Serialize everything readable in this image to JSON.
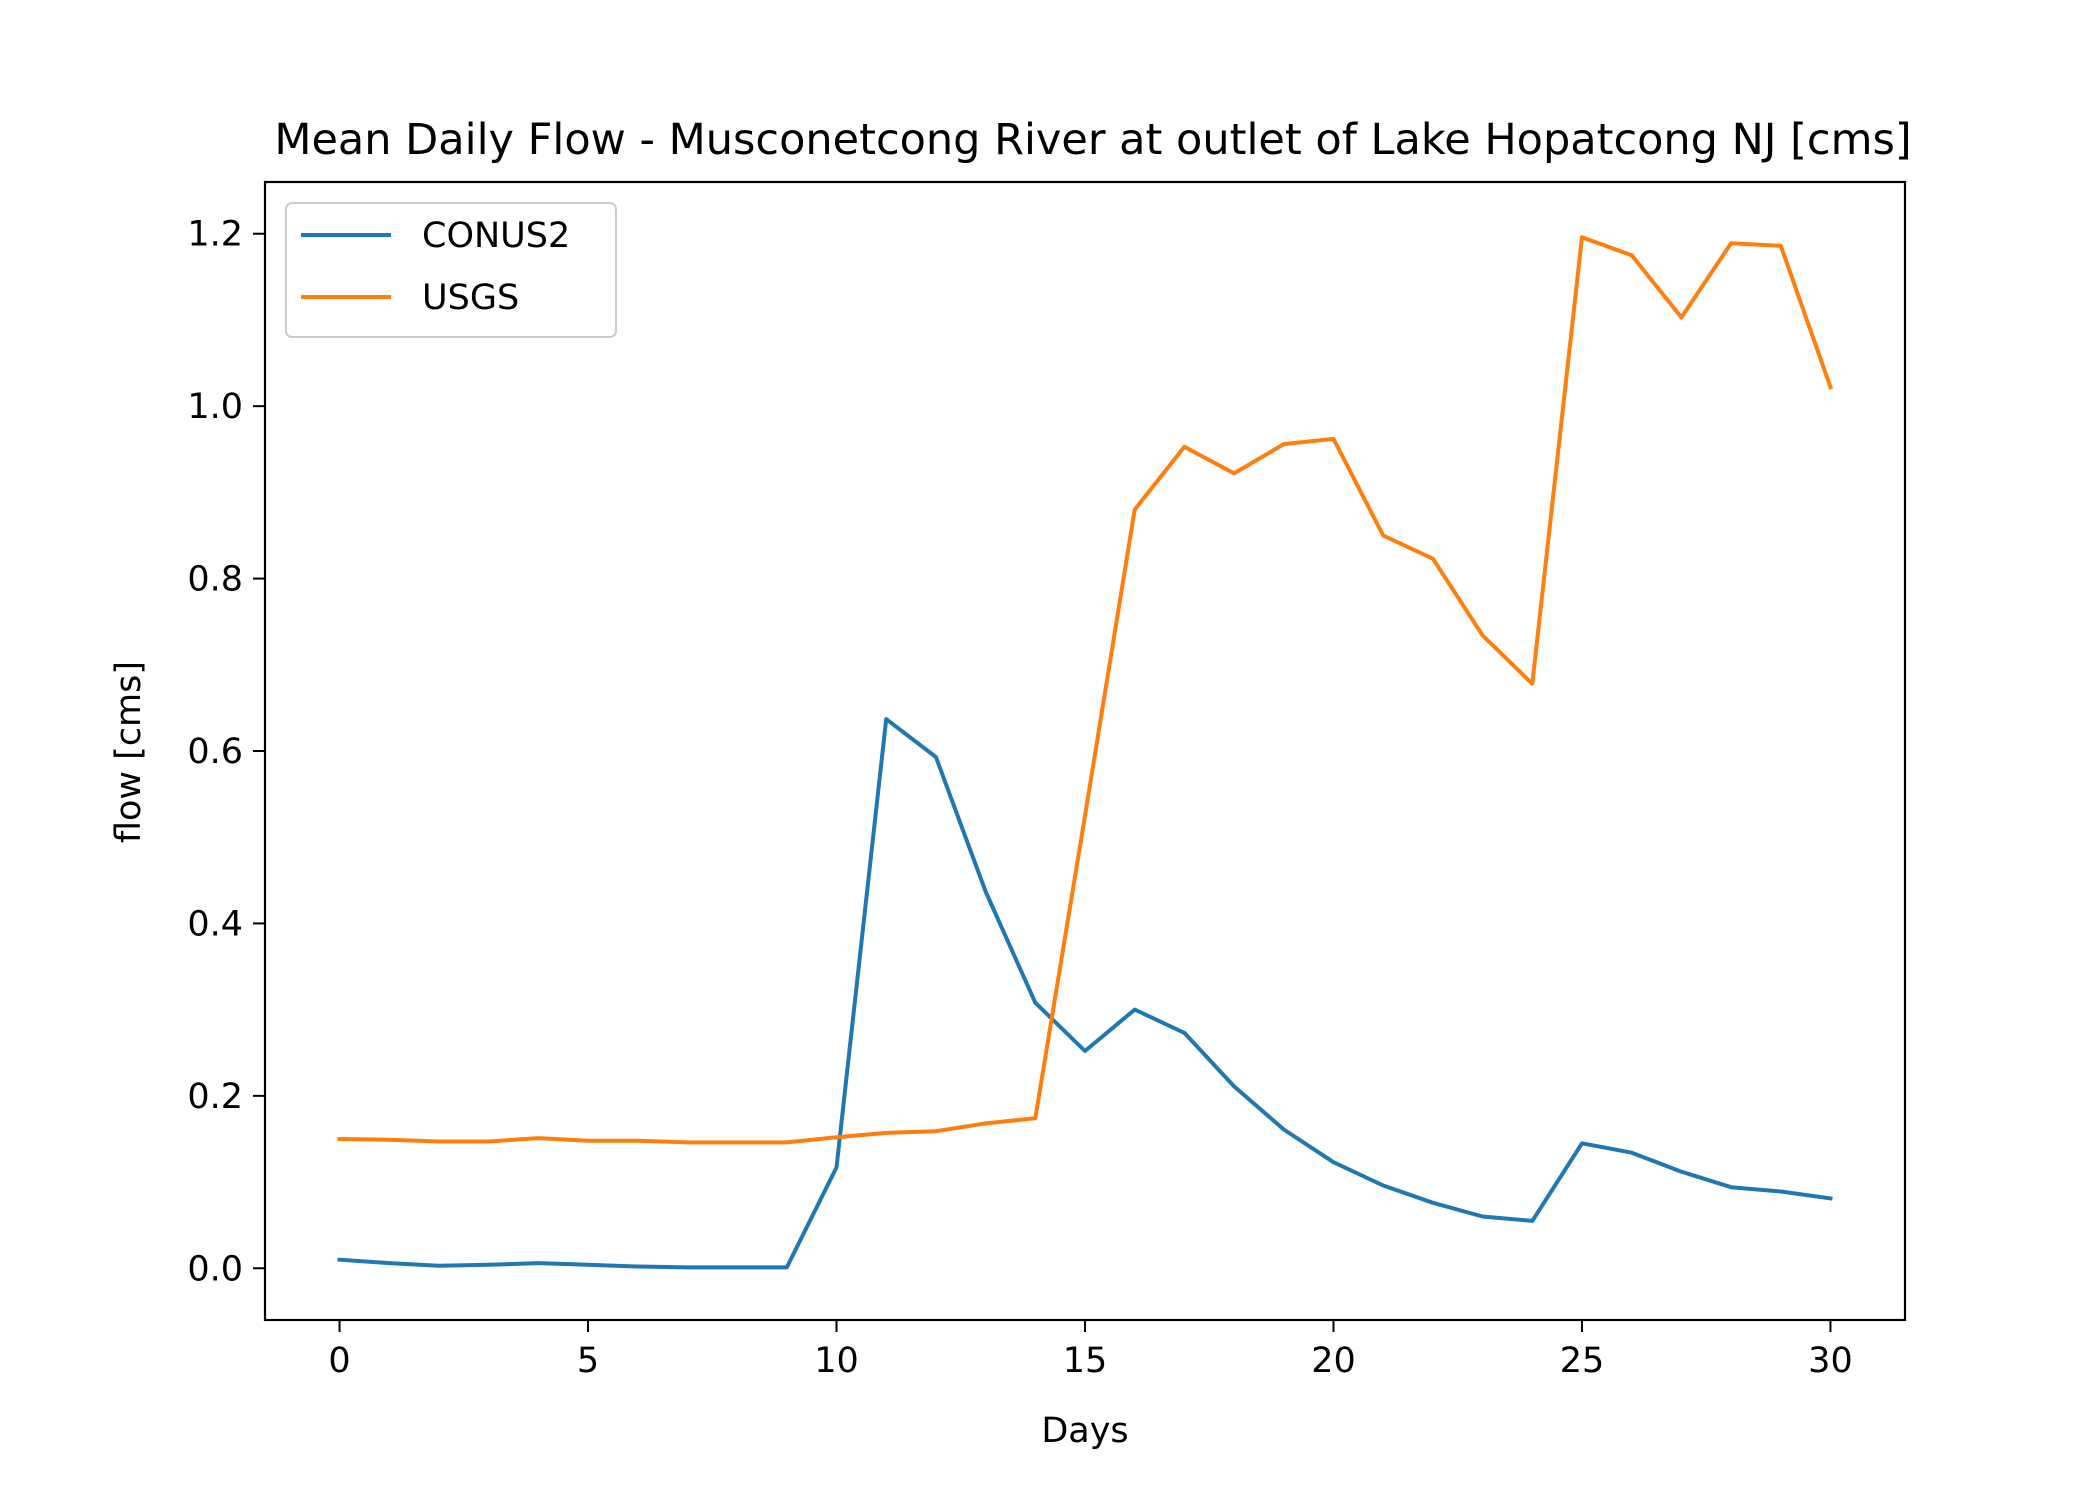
{
  "chart_data": {
    "type": "line",
    "title": "Mean Daily Flow - Musconetcong River at outlet of Lake Hopatcong NJ [cms]",
    "xlabel": "Days",
    "ylabel": "flow [cms]",
    "xlim": [
      -1.5,
      31.5
    ],
    "ylim": [
      -0.06,
      1.26
    ],
    "xticks": [
      0,
      5,
      10,
      15,
      20,
      25,
      30
    ],
    "xtick_labels": [
      "0",
      "5",
      "10",
      "15",
      "20",
      "25",
      "30"
    ],
    "yticks": [
      0.0,
      0.2,
      0.4,
      0.6,
      0.8,
      1.0,
      1.2
    ],
    "ytick_labels": [
      "0.0",
      "0.2",
      "0.4",
      "0.6",
      "0.8",
      "1.0",
      "1.2"
    ],
    "grid": false,
    "legend_position": "top-left",
    "x": [
      0,
      1,
      2,
      3,
      4,
      5,
      6,
      7,
      8,
      9,
      10,
      11,
      12,
      13,
      14,
      15,
      16,
      17,
      18,
      19,
      20,
      21,
      22,
      23,
      24,
      25,
      26,
      27,
      28,
      29,
      30
    ],
    "series": [
      {
        "name": "CONUS2",
        "color": "#1f77b4",
        "values": [
          0.01,
          0.006,
          0.003,
          0.004,
          0.006,
          0.004,
          0.002,
          0.001,
          0.001,
          0.001,
          0.117,
          0.637,
          0.593,
          0.437,
          0.308,
          0.252,
          0.3,
          0.273,
          0.211,
          0.161,
          0.123,
          0.096,
          0.076,
          0.06,
          0.055,
          0.145,
          0.134,
          0.112,
          0.094,
          0.089,
          0.081
        ]
      },
      {
        "name": "USGS",
        "color": "#ff7f0e",
        "values": [
          0.15,
          0.149,
          0.147,
          0.147,
          0.151,
          0.148,
          0.148,
          0.146,
          0.146,
          0.146,
          0.152,
          0.157,
          0.159,
          0.168,
          0.174,
          0.525,
          0.88,
          0.953,
          0.922,
          0.956,
          0.962,
          0.85,
          0.823,
          0.734,
          0.678,
          1.196,
          1.175,
          1.103,
          1.189,
          1.186,
          1.022
        ]
      }
    ]
  }
}
